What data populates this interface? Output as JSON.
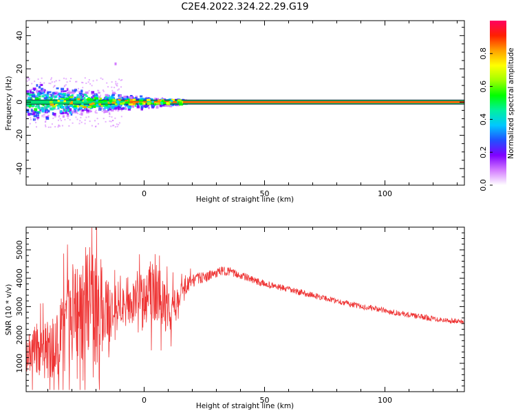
{
  "figure": {
    "title": "C2E4.2022.324.22.29.G19"
  },
  "chart_data": [
    {
      "type": "heatmap",
      "xlabel": "Height of straight line (km)",
      "ylabel": "Frequency (Hz)",
      "xlim": [
        -49,
        133
      ],
      "ylim": [
        -50,
        49
      ],
      "x_ticks": [
        "0",
        "50",
        "100"
      ],
      "y_ticks": [
        "-40",
        "-20",
        "0",
        "20",
        "40"
      ],
      "colorbar": {
        "label": "Normalized spectral amplitude",
        "range": [
          0,
          1
        ],
        "ticks": [
          "0.0",
          "0.2",
          "0.4",
          "0.6",
          "0.8"
        ],
        "colors": [
          "#ffffff",
          "#d37cff",
          "#8000ff",
          "#2050ff",
          "#00c8ff",
          "#00f0a0",
          "#00ff00",
          "#a0ff00",
          "#ffff00",
          "#ffa000",
          "#ff2000",
          "#ff0060"
        ]
      },
      "features": [
        {
          "name": "carrier-line",
          "frequency_hz": 0,
          "x_range": [
            -49,
            133
          ],
          "amplitude": 0.95
        },
        {
          "name": "noisy-spread",
          "x_range": [
            -49,
            -18
          ],
          "frequency_spread_hz": [
            -12,
            12
          ]
        },
        {
          "name": "isolated-spot",
          "x": -12,
          "frequency_hz": 23
        }
      ]
    },
    {
      "type": "line",
      "xlabel": "Height of straight line (km)",
      "ylabel": "SNR (10 * v/v)",
      "xlim": [
        -49,
        133
      ],
      "ylim": [
        0,
        5800
      ],
      "x_ticks": [
        "0",
        "50",
        "100"
      ],
      "y_ticks": [
        "1000",
        "2000",
        "3000",
        "4000",
        "5000"
      ],
      "series_color": "#ee3333",
      "series": [
        {
          "x": [
            -49,
            -45,
            -41,
            -37,
            -33,
            -31,
            -29,
            -27,
            -25,
            -23,
            -21,
            -19,
            -17,
            -15,
            -13,
            -11,
            -9,
            -7,
            -5,
            -3,
            -1,
            1,
            3,
            4,
            5,
            6,
            7,
            9,
            11,
            13,
            15,
            17,
            20,
            23,
            26,
            29,
            32,
            35,
            38,
            42,
            46,
            50,
            55,
            60,
            65,
            70,
            75,
            80,
            85,
            90,
            95,
            100,
            105,
            110,
            115,
            120,
            125,
            130,
            133
          ],
          "y": [
            1200,
            1500,
            1400,
            1600,
            2000,
            2600,
            2900,
            3000,
            3100,
            3200,
            2800,
            3100,
            3000,
            2500,
            2900,
            3200,
            3000,
            2900,
            3100,
            3500,
            3400,
            3200,
            3600,
            3900,
            3600,
            3400,
            3200,
            2900,
            2800,
            3100,
            3500,
            3700,
            3900,
            4000,
            4050,
            4150,
            4250,
            4250,
            4150,
            4050,
            3900,
            3800,
            3700,
            3600,
            3500,
            3400,
            3300,
            3200,
            3100,
            3000,
            2950,
            2850,
            2780,
            2700,
            2640,
            2580,
            2520,
            2480,
            2450
          ],
          "noise": [
            800,
            900,
            1000,
            1300,
            1500,
            1800,
            1900,
            2000,
            2000,
            2000,
            2100,
            2000,
            1600,
            1200,
            900,
            800,
            650,
            600,
            700,
            800,
            700,
            900,
            1200,
            1400,
            1200,
            900,
            900,
            800,
            700,
            600,
            400,
            300,
            250,
            200,
            180,
            160,
            160,
            150,
            140,
            130,
            130,
            120,
            120,
            110,
            110,
            110,
            100,
            100,
            100,
            100,
            100,
            100,
            95,
            95,
            95,
            95,
            95,
            95,
            95
          ]
        }
      ]
    }
  ]
}
